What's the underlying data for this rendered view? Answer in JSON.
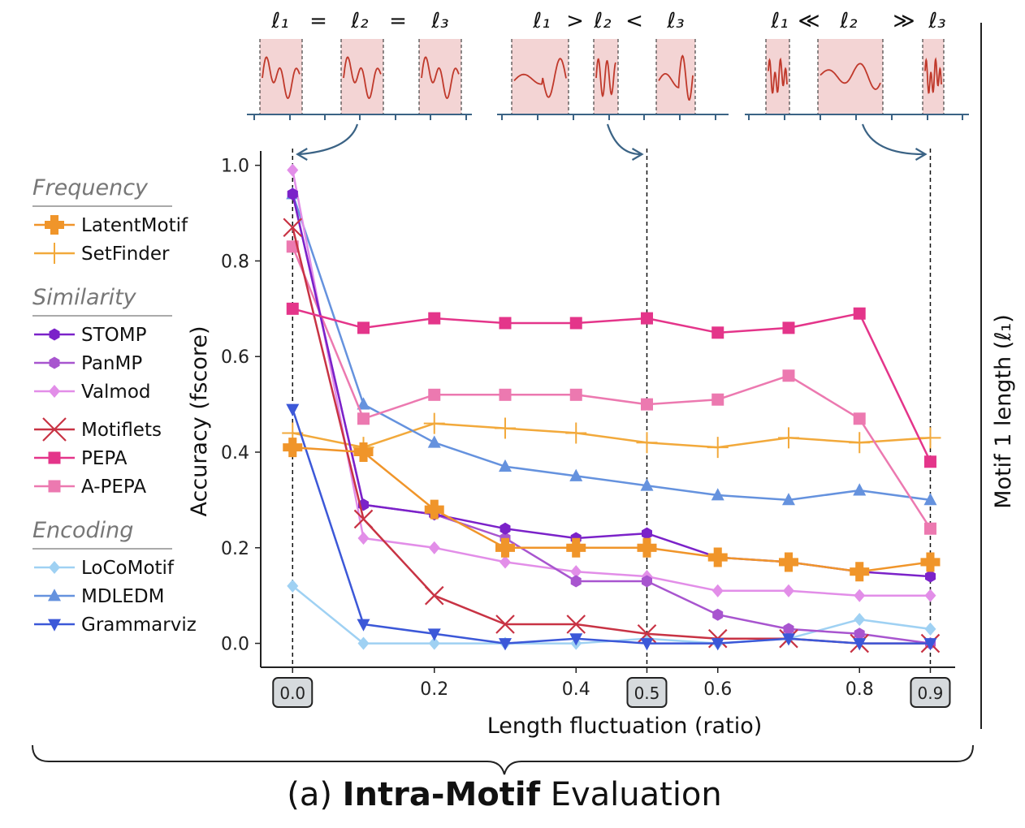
{
  "chart_data": {
    "type": "line",
    "title": "(a) Intra-Motif Evaluation",
    "title_bold": "Intra-Motif",
    "title_prefix": "(a) ",
    "title_suffix": " Evaluation",
    "xlabel": "Length fluctuation (ratio)",
    "ylabel": "Accuracy (fscore)",
    "right_label": "Motif 1 length (ℓ₁)",
    "xlim": [
      -0.045,
      0.935
    ],
    "ylim": [
      -0.05,
      1.03
    ],
    "x": [
      0.0,
      0.1,
      0.2,
      0.3,
      0.4,
      0.5,
      0.6,
      0.7,
      0.8,
      0.9
    ],
    "x_ticks": [
      "0.0",
      "0.2",
      "0.4",
      "0.5",
      "0.6",
      "0.8",
      "0.9"
    ],
    "x_ticks_boxed": [
      "0.0",
      "0.5",
      "0.9"
    ],
    "y_ticks": [
      "0.0",
      "0.2",
      "0.4",
      "0.6",
      "0.8",
      "1.0"
    ],
    "grid": false,
    "legend_position": "left",
    "legend_groups": [
      {
        "name": "Frequency",
        "series": [
          "LatentMotif",
          "SetFinder"
        ]
      },
      {
        "name": "Similarity",
        "series": [
          "STOMP",
          "PanMP",
          "Valmod",
          "Motiflets",
          "PEPA",
          "A-PEPA"
        ]
      },
      {
        "name": "Encoding",
        "series": [
          "LoCoMotif",
          "MDLEDM",
          "Grammarviz"
        ]
      }
    ],
    "series": [
      {
        "name": "LatentMotif",
        "color": "#f0952a",
        "marker": "plus-thick",
        "values": [
          0.41,
          0.4,
          0.28,
          0.2,
          0.2,
          0.2,
          0.18,
          0.17,
          0.15,
          0.17
        ]
      },
      {
        "name": "SetFinder",
        "color": "#f2a93b",
        "marker": "plus-thin",
        "values": [
          0.44,
          0.41,
          0.46,
          0.45,
          0.44,
          0.42,
          0.41,
          0.43,
          0.42,
          0.43
        ]
      },
      {
        "name": "STOMP",
        "color": "#7b22c9",
        "marker": "hexagon",
        "values": [
          0.94,
          0.29,
          0.27,
          0.24,
          0.22,
          0.23,
          0.18,
          0.17,
          0.15,
          0.14
        ]
      },
      {
        "name": "PanMP",
        "color": "#a855cf",
        "marker": "hexagon",
        "values": [
          0.94,
          0.29,
          0.27,
          0.22,
          0.13,
          0.13,
          0.06,
          0.03,
          0.02,
          0.0
        ]
      },
      {
        "name": "Valmod",
        "color": "#e28ee8",
        "marker": "diamond",
        "values": [
          0.99,
          0.22,
          0.2,
          0.17,
          0.15,
          0.14,
          0.11,
          0.11,
          0.1,
          0.1
        ]
      },
      {
        "name": "Motiflets",
        "color": "#c83344",
        "marker": "x",
        "values": [
          0.87,
          0.26,
          0.1,
          0.04,
          0.04,
          0.02,
          0.01,
          0.01,
          0.0,
          0.0
        ]
      },
      {
        "name": "PEPA",
        "color": "#e4358a",
        "marker": "square",
        "values": [
          0.7,
          0.66,
          0.68,
          0.67,
          0.67,
          0.68,
          0.65,
          0.66,
          0.69,
          0.38
        ]
      },
      {
        "name": "A-PEPA",
        "color": "#ec79b0",
        "marker": "square",
        "values": [
          0.83,
          0.47,
          0.52,
          0.52,
          0.52,
          0.5,
          0.51,
          0.56,
          0.47,
          0.24
        ]
      },
      {
        "name": "LoCoMotif",
        "color": "#9fd1f3",
        "marker": "diamond",
        "values": [
          0.12,
          0.0,
          0.0,
          0.0,
          0.0,
          0.01,
          0.0,
          0.01,
          0.05,
          0.03
        ]
      },
      {
        "name": "MDLEDM",
        "color": "#6592de",
        "marker": "triangle-up",
        "values": [
          0.94,
          0.5,
          0.42,
          0.37,
          0.35,
          0.33,
          0.31,
          0.3,
          0.32,
          0.3
        ]
      },
      {
        "name": "Grammarviz",
        "color": "#3c58d8",
        "marker": "triangle-down",
        "values": [
          0.49,
          0.04,
          0.02,
          0.0,
          0.01,
          0.0,
          0.0,
          0.01,
          0.0,
          0.0
        ]
      }
    ],
    "insets": [
      {
        "expression": [
          "ℓ₁",
          "=",
          "ℓ₂",
          "=",
          "ℓ₃"
        ],
        "points_to_x": 0.0
      },
      {
        "expression": [
          "ℓ₁",
          ">",
          "ℓ₂",
          "<",
          "ℓ₃"
        ],
        "points_to_x": 0.5
      },
      {
        "expression": [
          "ℓ₁",
          "≪",
          "ℓ₂",
          "≫",
          "ℓ₃"
        ],
        "points_to_x": 0.9
      }
    ],
    "highlight_color": "#f3d4d4",
    "signal_color": "#c0392b",
    "axis_color": "#3b6385"
  }
}
